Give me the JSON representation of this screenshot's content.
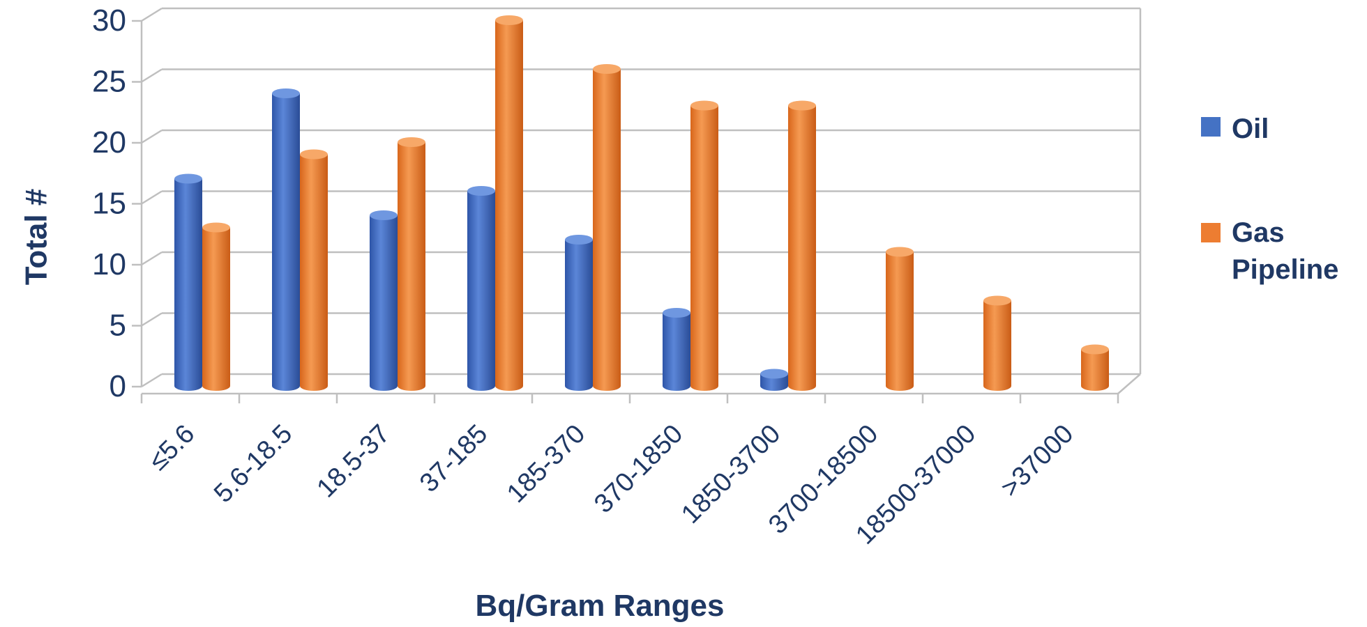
{
  "chart_data": {
    "type": "bar",
    "title": "",
    "xlabel": "Bq/Gram Ranges",
    "ylabel": "Total  #",
    "ylim": [
      0,
      30
    ],
    "yticks": [
      "0",
      "5",
      "10",
      "15",
      "20",
      "25",
      "30"
    ],
    "categories": [
      "≤5.6",
      "5.6-18.5",
      "18.5-37",
      "37-185",
      "185-370",
      "370-1850",
      "1850-3700",
      "3700-18500",
      "18500-37000",
      ">37000"
    ],
    "series": [
      {
        "name": "Oil",
        "color": "#4472c4",
        "values": [
          17,
          24,
          14,
          16,
          12,
          6,
          1,
          0,
          0,
          0
        ]
      },
      {
        "name": "Gas Pipeline",
        "color": "#ed7d31",
        "values": [
          13,
          19,
          20,
          30,
          26,
          23,
          23,
          11,
          7,
          3
        ]
      }
    ],
    "legend": {
      "position": "right",
      "oil_label": "Oil",
      "gas_line1": "Gas",
      "gas_line2": "Pipeline"
    },
    "grid": true,
    "style": "3d-cylinder"
  }
}
